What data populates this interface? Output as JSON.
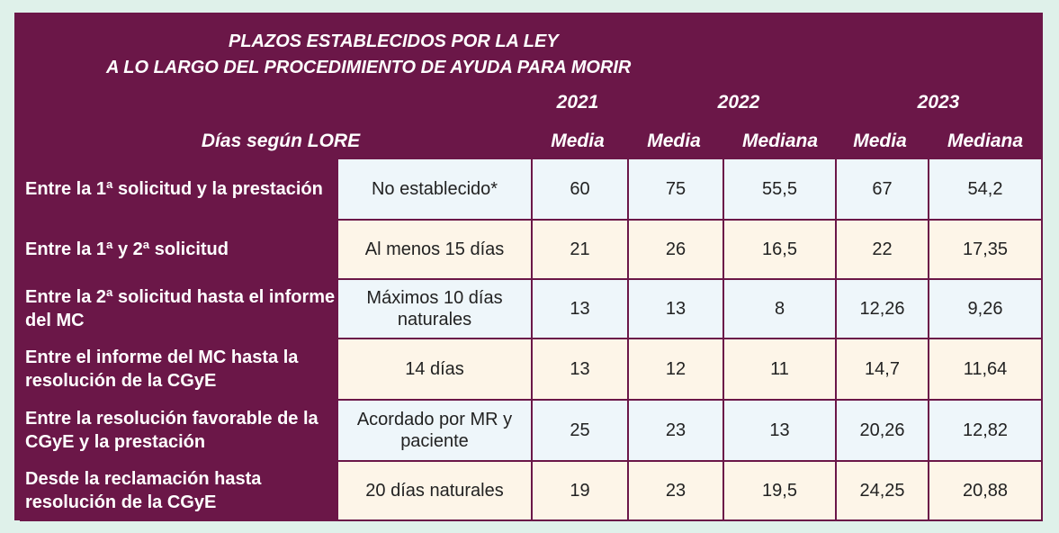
{
  "title": {
    "line1": "PLAZOS ESTABLECIDOS POR LA LEY",
    "line2": "A LO LARGO DEL PROCEDIMIENTO DE AYUDA PARA MORIR"
  },
  "header": {
    "lore_label": "Días según LORE",
    "years": [
      "2021",
      "2022",
      "2023"
    ],
    "subcols": [
      "Media",
      "Media",
      "Mediana",
      "Media",
      "Mediana"
    ]
  },
  "rows": [
    {
      "label": "Entre la 1ª solicitud y la prestación",
      "lore": "No establecido*",
      "v": [
        "60",
        "75",
        "55,5",
        "67",
        "54,2"
      ]
    },
    {
      "label": "Entre la 1ª y 2ª solicitud",
      "lore": "Al menos 15 días",
      "v": [
        "21",
        "26",
        "16,5",
        "22",
        "17,35"
      ]
    },
    {
      "label": "Entre la 2ª solicitud hasta el informe del MC",
      "lore": "Máximos 10 días naturales",
      "v": [
        "13",
        "13",
        "8",
        "12,26",
        "9,26"
      ]
    },
    {
      "label": "Entre el informe del MC hasta la resolución de la CGyE",
      "lore": "14 días",
      "v": [
        "13",
        "12",
        "11",
        "14,7",
        "11,64"
      ]
    },
    {
      "label": "Entre la resolución favorable de la CGyE y la prestación",
      "lore": "Acordado por MR y paciente",
      "v": [
        "25",
        "23",
        "13",
        "20,26",
        "12,82"
      ]
    },
    {
      "label": "Desde la reclamación hasta resolución de la CGyE",
      "lore": "20 días naturales",
      "v": [
        "19",
        "23",
        "19,5",
        "24,25",
        "20,88"
      ]
    }
  ]
}
